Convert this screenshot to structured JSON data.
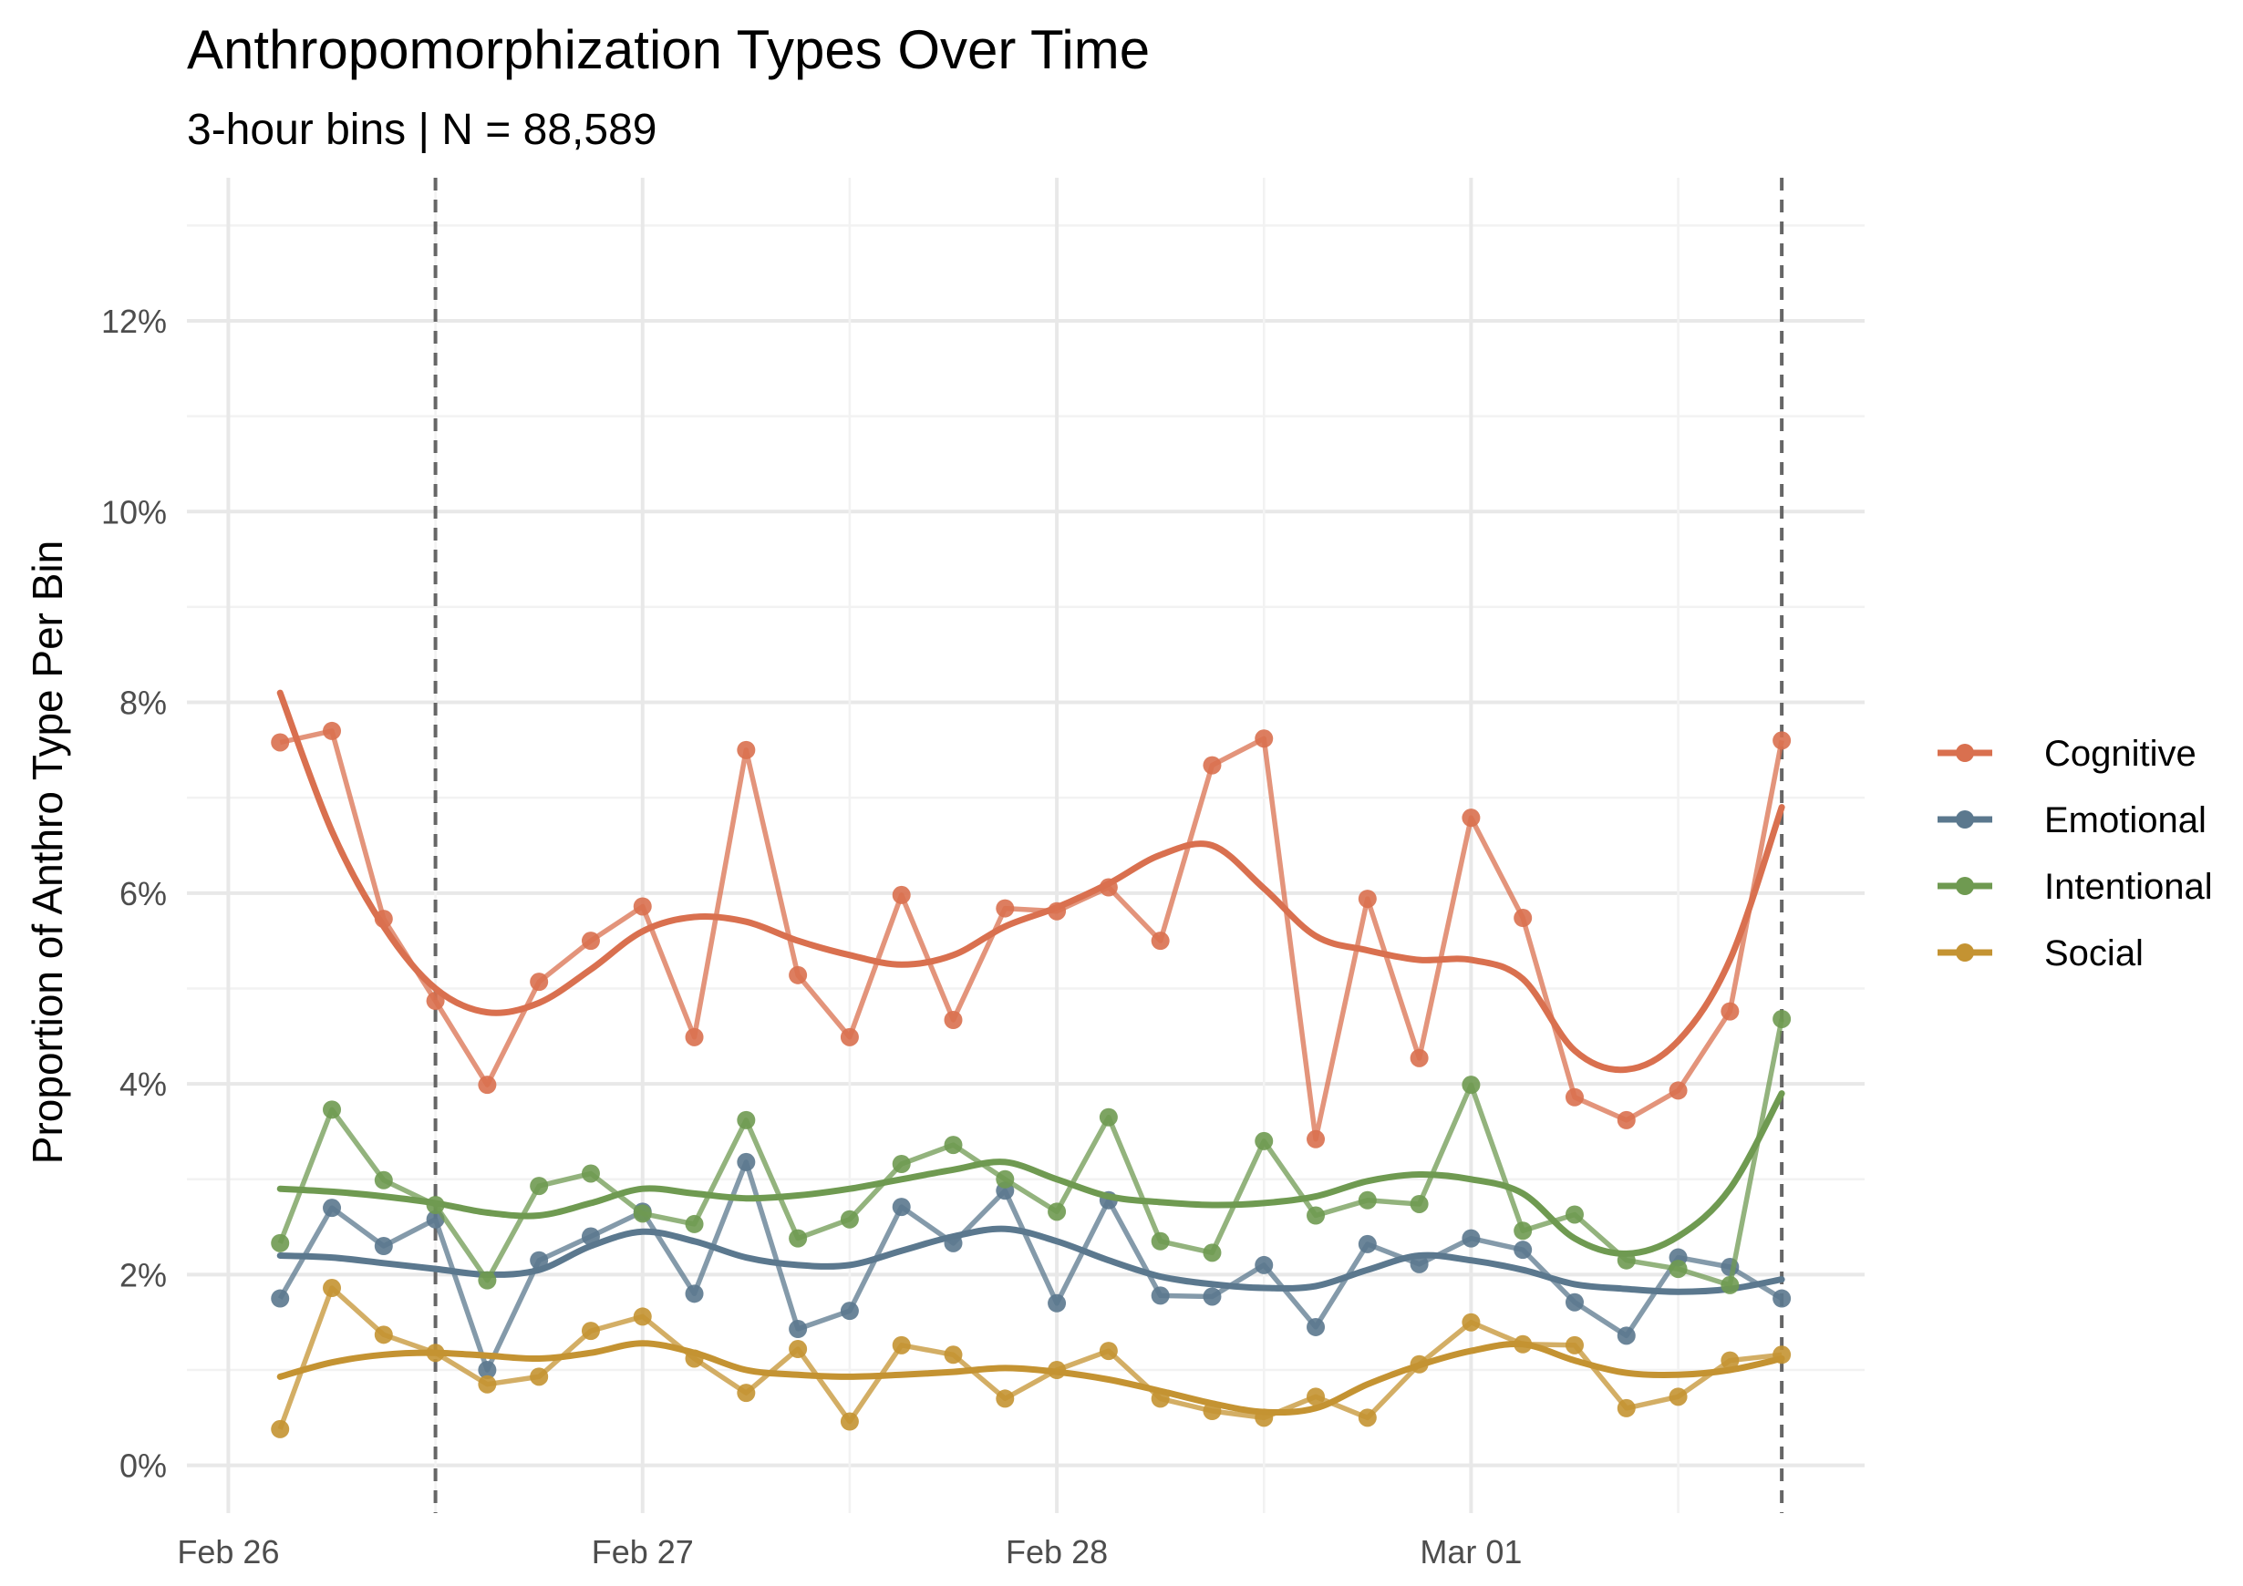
{
  "chart_data": {
    "type": "line",
    "title": "Anthropomorphization Types Over Time",
    "subtitle": "3-hour bins | N = 88,589",
    "xlabel": "",
    "ylabel": "Proportion of Anthro Type Per Bin",
    "x_ticks": [
      "Feb 26",
      "Feb 27",
      "Feb 28",
      "Mar 01"
    ],
    "y_ticks": [
      "0%",
      "2%",
      "4%",
      "6%",
      "8%",
      "10%",
      "12%"
    ],
    "ylim": [
      -0.5,
      13.5
    ],
    "x_unit": "day index from Feb 26 00:00",
    "xlim": [
      -0.1,
      3.95
    ],
    "grid": true,
    "legend_position": "right",
    "reference_lines_x": [
      0.5,
      3.75
    ],
    "x": [
      0.125,
      0.25,
      0.375,
      0.5,
      0.625,
      0.75,
      0.875,
      1.0,
      1.125,
      1.25,
      1.375,
      1.5,
      1.625,
      1.75,
      1.875,
      2.0,
      2.125,
      2.25,
      2.375,
      2.5,
      2.625,
      2.75,
      2.875,
      3.0,
      3.125,
      3.25,
      3.375,
      3.5,
      3.625,
      3.75
    ],
    "series": [
      {
        "name": "Cognitive",
        "color": "#D9704F",
        "values": [
          7.58,
          7.7,
          5.73,
          4.87,
          3.99,
          5.07,
          5.5,
          5.86,
          4.49,
          7.5,
          5.14,
          4.49,
          5.98,
          4.67,
          5.84,
          5.81,
          6.06,
          5.5,
          7.34,
          7.62,
          3.42,
          5.94,
          4.27,
          6.79,
          5.74,
          3.86,
          3.62,
          3.93,
          4.76,
          7.6
        ],
        "smooth": [
          8.1,
          6.65,
          5.65,
          5.0,
          4.75,
          4.85,
          5.2,
          5.6,
          5.75,
          5.7,
          5.5,
          5.35,
          5.25,
          5.35,
          5.65,
          5.85,
          6.1,
          6.4,
          6.5,
          6.05,
          5.55,
          5.4,
          5.3,
          5.3,
          5.1,
          4.35,
          4.15,
          4.45,
          5.3,
          6.9
        ]
      },
      {
        "name": "Emotional",
        "color": "#5B788E",
        "values": [
          1.75,
          2.7,
          2.3,
          2.58,
          1.0,
          2.15,
          2.4,
          2.66,
          1.8,
          3.18,
          1.43,
          1.62,
          2.71,
          2.33,
          2.88,
          1.7,
          2.78,
          1.78,
          1.77,
          2.1,
          1.45,
          2.32,
          2.11,
          2.38,
          2.26,
          1.71,
          1.36,
          2.18,
          2.08,
          1.75
        ],
        "smooth": [
          2.2,
          2.18,
          2.12,
          2.06,
          2.0,
          2.05,
          2.3,
          2.45,
          2.35,
          2.18,
          2.1,
          2.1,
          2.25,
          2.4,
          2.48,
          2.35,
          2.15,
          1.98,
          1.9,
          1.86,
          1.88,
          2.05,
          2.2,
          2.15,
          2.05,
          1.9,
          1.85,
          1.82,
          1.85,
          1.95
        ]
      },
      {
        "name": "Intentional",
        "color": "#6F9A51",
        "values": [
          2.33,
          3.73,
          2.99,
          2.73,
          1.94,
          2.93,
          3.06,
          2.64,
          2.53,
          3.62,
          2.38,
          2.58,
          3.16,
          3.36,
          3.0,
          2.66,
          3.65,
          2.35,
          2.23,
          3.4,
          2.62,
          2.78,
          2.74,
          3.99,
          2.46,
          2.63,
          2.15,
          2.06,
          1.89,
          4.68
        ],
        "smooth": [
          2.9,
          2.87,
          2.82,
          2.75,
          2.65,
          2.62,
          2.75,
          2.9,
          2.85,
          2.8,
          2.83,
          2.9,
          3.0,
          3.1,
          3.18,
          3.0,
          2.82,
          2.76,
          2.73,
          2.75,
          2.82,
          2.98,
          3.05,
          3.0,
          2.85,
          2.38,
          2.22,
          2.4,
          2.9,
          3.9
        ]
      },
      {
        "name": "Social",
        "color": "#C49332",
        "values": [
          0.38,
          1.86,
          1.37,
          1.18,
          0.85,
          0.93,
          1.41,
          1.56,
          1.12,
          0.76,
          1.22,
          0.46,
          1.26,
          1.16,
          0.7,
          1.0,
          1.2,
          0.7,
          0.57,
          0.5,
          0.72,
          0.5,
          1.06,
          1.5,
          1.27,
          1.26,
          0.6,
          0.72,
          1.1,
          1.16
        ],
        "smooth": [
          0.93,
          1.08,
          1.16,
          1.18,
          1.15,
          1.12,
          1.18,
          1.28,
          1.18,
          1.0,
          0.95,
          0.93,
          0.95,
          0.98,
          1.02,
          0.98,
          0.9,
          0.78,
          0.65,
          0.56,
          0.6,
          0.85,
          1.05,
          1.2,
          1.27,
          1.1,
          0.97,
          0.95,
          1.0,
          1.12
        ]
      }
    ]
  }
}
